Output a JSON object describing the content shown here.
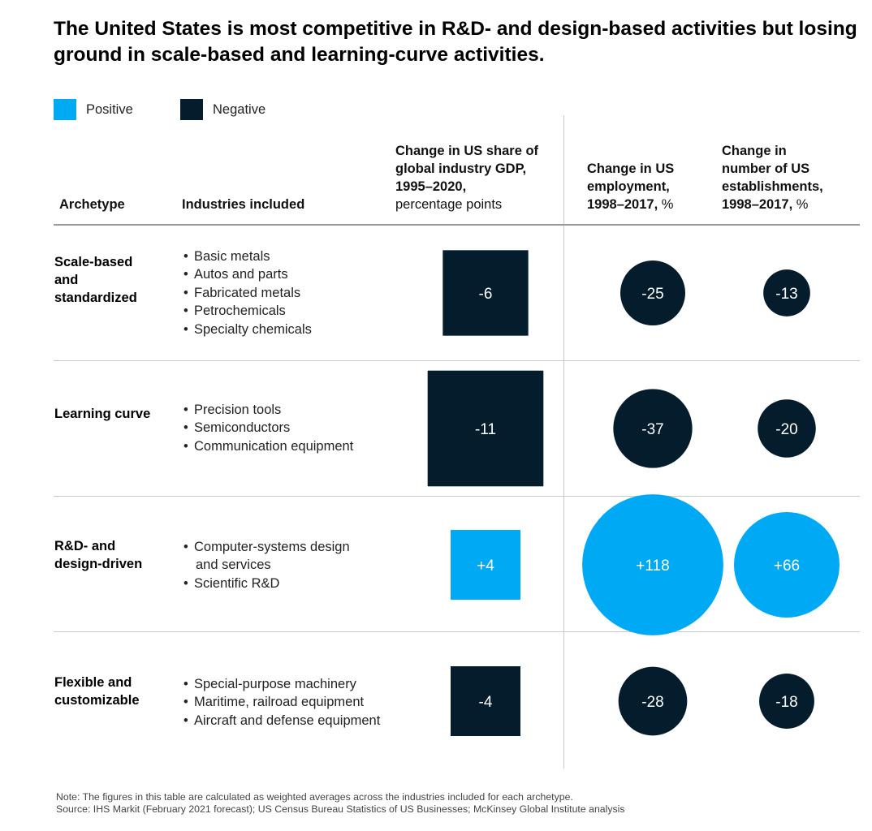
{
  "title": "The United States is most competitive in R&D- and design-based activities but losing ground in scale-based and learning-curve activities.",
  "legend": [
    {
      "label": "Positive",
      "color": "#00a9f4"
    },
    {
      "label": "Negative",
      "color": "#051c2c"
    }
  ],
  "headers": {
    "archetype": "Archetype",
    "industries": "Industries included",
    "gdp": {
      "bold_lines": [
        "Change in US share of",
        "global industry GDP,",
        "1995–2020,"
      ],
      "unit": "percentage points"
    },
    "employment": {
      "bold_lines": [
        "Change in US",
        "employment,"
      ],
      "last_bold": "1998–2017,",
      "unit": " %"
    },
    "establishments": {
      "bold_lines": [
        "Change in",
        "number of US",
        "establishments,"
      ],
      "last_bold": "1998–2017,",
      "unit": " %"
    }
  },
  "rows": [
    {
      "archetype_lines": [
        "Scale-based",
        "and",
        "standardized"
      ],
      "industries": [
        [
          "Basic metals"
        ],
        [
          "Autos and parts"
        ],
        [
          "Fabricated metals"
        ],
        [
          "Petrochemicals"
        ],
        [
          "Specialty chemicals"
        ]
      ]
    },
    {
      "archetype_lines": [
        "Learning curve"
      ],
      "industries": [
        [
          "Precision tools"
        ],
        [
          "Semiconductors"
        ],
        [
          "Communication equipment"
        ]
      ]
    },
    {
      "archetype_lines": [
        "R&D- and",
        "design-driven"
      ],
      "industries": [
        [
          "Computer-systems design",
          "and services"
        ],
        [
          "Scientific R&D"
        ]
      ]
    },
    {
      "archetype_lines": [
        "Flexible and",
        "customizable"
      ],
      "industries": [
        [
          "Special-purpose machinery"
        ],
        [
          "Maritime, railroad equipment"
        ],
        [
          "Aircraft and defense equipment"
        ]
      ]
    }
  ],
  "chart_data": {
    "type": "table",
    "columns": [
      "Change in US share of global industry GDP, 1995–2020, percentage points",
      "Change in US employment, 1998–2017, %",
      "Change in number of US establishments, 1998–2017, %"
    ],
    "categories": [
      "Scale-based and standardized",
      "Learning curve",
      "R&D- and design-driven",
      "Flexible and customizable"
    ],
    "series": [
      {
        "values": [
          -6,
          -11,
          4,
          -4
        ],
        "labels": [
          "-6",
          "-11",
          "+4",
          "-4"
        ]
      },
      {
        "values": [
          -25,
          -37,
          118,
          -28
        ],
        "labels": [
          "-25",
          "-37",
          "+118",
          "-28"
        ]
      },
      {
        "values": [
          -13,
          -20,
          66,
          -18
        ],
        "labels": [
          "-13",
          "-20",
          "+66",
          "-18"
        ]
      }
    ],
    "positive_color": "#00a9f4",
    "negative_color": "#051c2c"
  },
  "footnote": {
    "note": "Note: The figures in this table are calculated as weighted averages across the industries included for each archetype.",
    "source": "Source: IHS Markit (February 2021 forecast); US Census Bureau Statistics of US Businesses; McKinsey Global Institute analysis"
  }
}
